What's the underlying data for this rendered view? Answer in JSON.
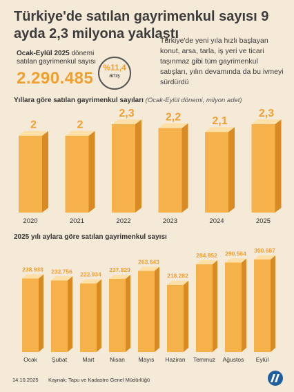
{
  "title": "Türkiye'de satılan gayrimenkul sayısı 9 ayda 2,3 milyona yaklaştı",
  "lead": "Türkiye'de yeni yıla hızlı başlayan konut, arsa, tarla, iş yeri ve ticari taşınmaz gibi tüm gayrimenkul satışları, yılın devamında da bu ivmeyi sürdürdü",
  "stat": {
    "label_bold": "Ocak-Eylül 2025",
    "label_rest": " dönemi satılan gayrimenkul sayısı",
    "value": "2.290.485"
  },
  "badge": {
    "pct": "%11,4",
    "sub": "artış"
  },
  "section1": {
    "title": "Yıllara göre satılan gayrimenkul sayıları",
    "subtitle": "(Ocak-Eylül dönemi, milyon adet)"
  },
  "section2": {
    "title": "2025 yılı aylara göre satılan gayrimenkul sayısı"
  },
  "footer": {
    "date": "14.10.2025",
    "source": "Kaynak: Tapu ve Kadastro Genel Müdürlüğü"
  },
  "colors": {
    "bar_front": "#f6b24a",
    "bar_side": "#d98a22",
    "bar_top": "#fde0a8",
    "value_text": "#f0a030",
    "label_text": "#333333"
  },
  "chart_data": [
    {
      "type": "bar",
      "title": "Yıllara göre satılan gayrimenkul sayıları",
      "subtitle": "(Ocak-Eylül dönemi, milyon adet)",
      "categories": [
        "2020",
        "2021",
        "2022",
        "2023",
        "2024",
        "2025"
      ],
      "values": [
        2.0,
        2.0,
        2.3,
        2.2,
        2.1,
        2.3
      ],
      "labels": [
        "2",
        "2",
        "2,3",
        "2,2",
        "2,1",
        "2,3"
      ],
      "ylim": [
        0,
        2.3
      ]
    },
    {
      "type": "bar",
      "title": "2025 yılı aylara göre satılan gayrimenkul sayısı",
      "categories": [
        "Ocak",
        "Şubat",
        "Mart",
        "Nisan",
        "Mayıs",
        "Haziran",
        "Temmuz",
        "Ağustos",
        "Eylül"
      ],
      "values": [
        238938,
        232756,
        222934,
        237829,
        263643,
        218282,
        284852,
        290564,
        300687
      ],
      "labels": [
        "238.938",
        "232.756",
        "222.934",
        "237.829",
        "263.643",
        "218.282",
        "284.852",
        "290.564",
        "300.687"
      ],
      "ylim": [
        0,
        300687
      ]
    }
  ]
}
